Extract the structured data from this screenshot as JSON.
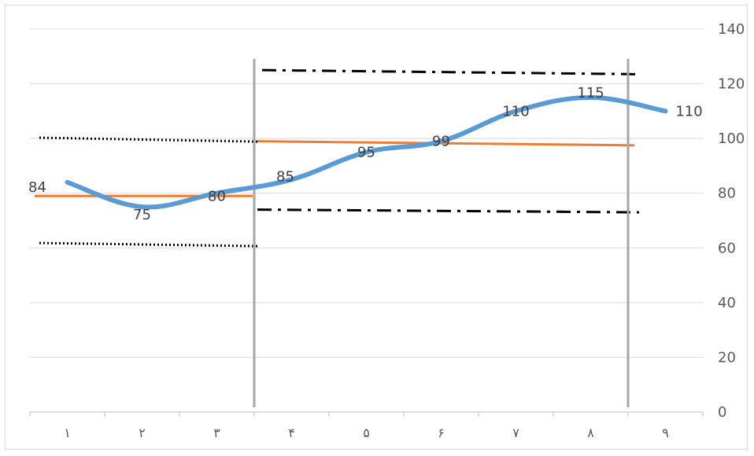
{
  "chart_data": {
    "type": "line",
    "categories": [
      "١",
      "٢",
      "٣",
      "۴",
      "۵",
      "۶",
      "٧",
      "٨",
      "٩"
    ],
    "series": [
      {
        "values": [
          84,
          75,
          80,
          85,
          95,
          99,
          110,
          115,
          110
        ],
        "color": "#5b9bd5"
      }
    ],
    "data_labels": [
      "84",
      "75",
      "80",
      "85",
      "95",
      "99",
      "110",
      "115",
      "110"
    ],
    "y_ticks": [
      "0",
      "20",
      "40",
      "60",
      "80",
      "100",
      "120",
      "140"
    ],
    "ylim": [
      0,
      140
    ],
    "y_axis_position": "right",
    "grid": true,
    "title": "",
    "xlabel": "",
    "ylabel": "",
    "phase_dividers_after_category": [
      3,
      8
    ],
    "reference_lines": {
      "mean_lines_color": "#ed7d31",
      "phase1_mean": 79,
      "phase2_mean_start": 99,
      "phase2_mean_end": 97.5,
      "phase1_upper_dotted": 100,
      "phase1_lower_dotted": 61.5,
      "phase2_upper_dashdot_start": 125,
      "phase2_upper_dashdot_end": 123.5,
      "phase2_lower_dashdot_start": 74,
      "phase2_lower_dashdot_end": 73
    }
  }
}
